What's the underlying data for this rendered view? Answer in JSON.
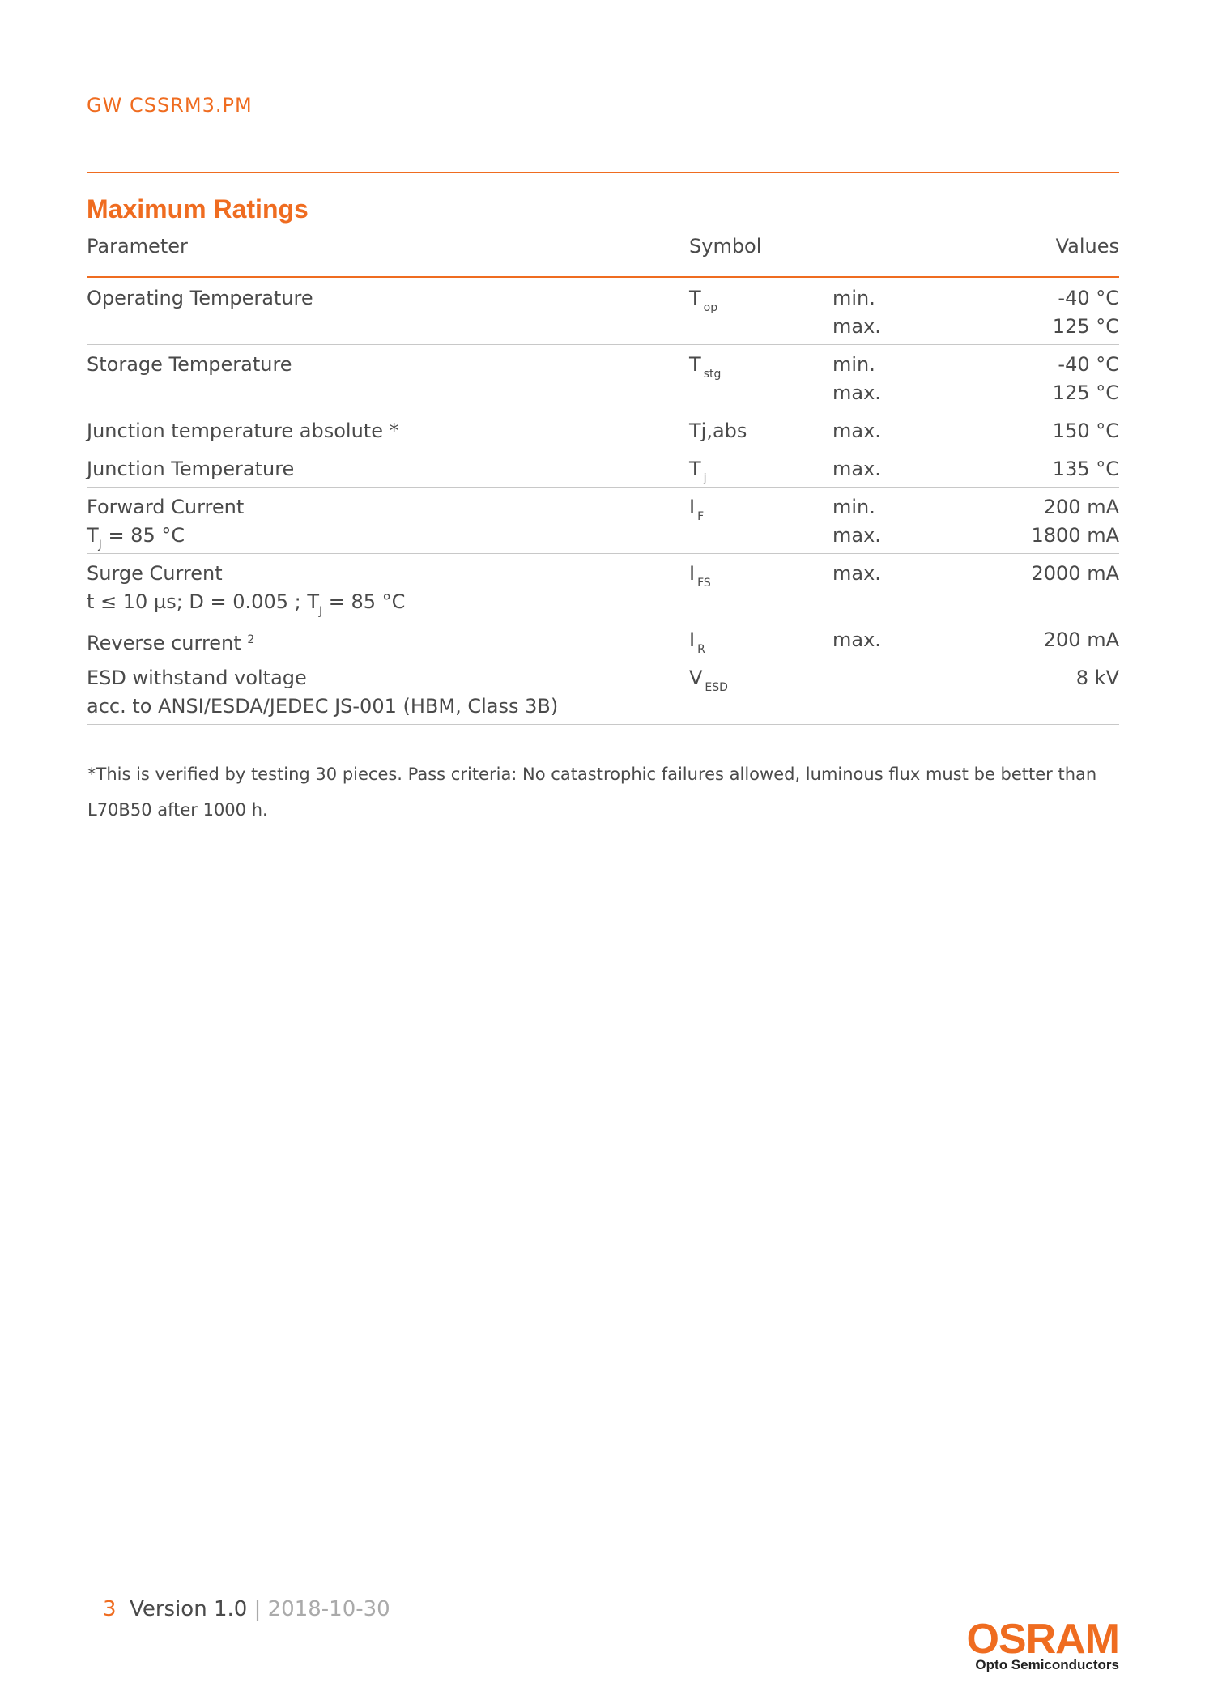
{
  "header": {
    "product": "GW CSSRM3.PM"
  },
  "section": {
    "title": "Maximum Ratings"
  },
  "table": {
    "columns": [
      "Parameter",
      "Symbol",
      "Values"
    ],
    "rows": [
      {
        "parameter": "Operating Temperature",
        "symbol": {
          "base": "T",
          "sub": "op"
        },
        "limits": [
          "min.",
          "max."
        ],
        "values": [
          "-40 °C",
          "125 °C"
        ]
      },
      {
        "parameter": "Storage Temperature",
        "symbol": {
          "base": "T",
          "sub": "stg"
        },
        "limits": [
          "min.",
          "max."
        ],
        "values": [
          "-40 °C",
          "125 °C"
        ]
      },
      {
        "parameter": "Junction temperature absolute *",
        "symbol": {
          "base": "Tj,abs"
        },
        "limits": [
          "max."
        ],
        "values": [
          "150 °C"
        ]
      },
      {
        "parameter": "Junction Temperature",
        "symbol": {
          "base": "T",
          "sub": "j"
        },
        "limits": [
          "max."
        ],
        "values": [
          "135 °C"
        ]
      },
      {
        "parameter": "Forward Current",
        "condition": {
          "pre": "T",
          "sub": "J",
          "post": " = 85 °C"
        },
        "symbol": {
          "base": "I",
          "sub": "F"
        },
        "limits": [
          "min.",
          "max."
        ],
        "values": [
          "200 mA",
          "1800 mA"
        ]
      },
      {
        "parameter": "Surge Current",
        "condition": {
          "pre": "t ≤ 10 µs; D = 0.005 ; T",
          "sub": "J",
          "post": " = 85 °C"
        },
        "symbol": {
          "base": "I",
          "sub": "FS"
        },
        "limits": [
          "max."
        ],
        "values": [
          "2000 mA"
        ]
      },
      {
        "parameter": "Reverse current",
        "note": "2",
        "symbol": {
          "base": "I",
          "sub": "R"
        },
        "limits": [
          "max."
        ],
        "values": [
          "200 mA"
        ]
      },
      {
        "parameter": "ESD withstand voltage",
        "condition": {
          "pre": "acc. to ANSI/ESDA/JEDEC JS-001 (HBM, Class 3B)"
        },
        "symbol": {
          "base": "V",
          "sub": "ESD"
        },
        "limits": [],
        "values": [
          "8 kV"
        ]
      }
    ]
  },
  "footnote": "*This is verified by testing 30 pieces. Pass criteria: No catastrophic failures allowed, luminous flux must be better than L70B50 after 1000 h.",
  "footer": {
    "page": "3",
    "version": "Version 1.0",
    "separator": "|",
    "date": "2018-10-30",
    "brand": "OSRAM",
    "tagline": "Opto Semiconductors"
  }
}
